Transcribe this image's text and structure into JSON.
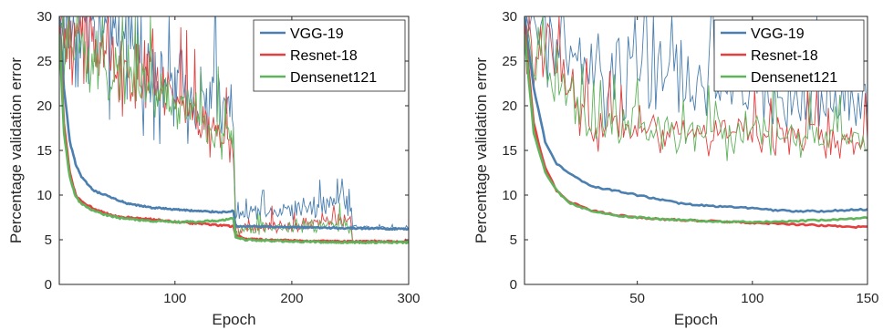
{
  "colors": {
    "VGG-19": "#4a7fb0",
    "Resnet-18": "#e3403f",
    "Densenet121": "#5fb35a",
    "axis": "#262626"
  },
  "chart_data": [
    {
      "type": "line",
      "xlabel": "Epoch",
      "ylabel": "Percentage validation error",
      "xlim": [
        1,
        300
      ],
      "ylim": [
        0,
        30
      ],
      "xticks": [
        100,
        200,
        300
      ],
      "yticks": [
        0,
        5,
        10,
        15,
        20,
        25,
        30
      ],
      "legend": "top-right",
      "series": [
        {
          "name": "VGG-19",
          "smooth": [
            [
              1,
              30
            ],
            [
              5,
              22
            ],
            [
              10,
              16
            ],
            [
              15,
              13.5
            ],
            [
              20,
              12
            ],
            [
              30,
              10.5
            ],
            [
              40,
              10
            ],
            [
              50,
              9.5
            ],
            [
              60,
              9
            ],
            [
              80,
              8.6
            ],
            [
              100,
              8.4
            ],
            [
              120,
              8.2
            ],
            [
              140,
              8.1
            ],
            [
              150,
              8.2
            ],
            [
              152,
              6.5
            ],
            [
              160,
              6.5
            ],
            [
              200,
              6.4
            ],
            [
              250,
              6.3
            ],
            [
              252,
              6.3
            ],
            [
              300,
              6.2
            ]
          ],
          "noise": [
            [
              1,
              30
            ],
            [
              150,
              19
            ],
            [
              152,
              7.5
            ],
            [
              250,
              9.5
            ],
            [
              252,
              6.5
            ],
            [
              300,
              6.3
            ]
          ],
          "amp": [
            [
              1,
              12
            ],
            [
              150,
              6
            ],
            [
              152,
              1.5
            ],
            [
              250,
              2.5
            ],
            [
              252,
              0.25
            ],
            [
              300,
              0.2
            ]
          ]
        },
        {
          "name": "Resnet-18",
          "smooth": [
            [
              1,
              29
            ],
            [
              5,
              18
            ],
            [
              10,
              12.5
            ],
            [
              15,
              10
            ],
            [
              20,
              9.3
            ],
            [
              30,
              8.5
            ],
            [
              40,
              8
            ],
            [
              50,
              7.6
            ],
            [
              60,
              7.5
            ],
            [
              80,
              7.3
            ],
            [
              100,
              7
            ],
            [
              120,
              6.8
            ],
            [
              140,
              6.6
            ],
            [
              150,
              6.5
            ],
            [
              152,
              5.5
            ],
            [
              160,
              5.1
            ],
            [
              200,
              4.9
            ],
            [
              250,
              4.8
            ],
            [
              252,
              4.8
            ],
            [
              300,
              4.8
            ]
          ],
          "noise": [
            [
              1,
              29
            ],
            [
              150,
              16
            ],
            [
              152,
              6.2
            ],
            [
              250,
              7.2
            ],
            [
              252,
              4.9
            ],
            [
              300,
              4.8
            ]
          ],
          "amp": [
            [
              1,
              8
            ],
            [
              150,
              3.5
            ],
            [
              152,
              1.1
            ],
            [
              250,
              1.3
            ],
            [
              252,
              0.15
            ],
            [
              300,
              0.12
            ]
          ]
        },
        {
          "name": "Densenet121",
          "smooth": [
            [
              1,
              28
            ],
            [
              5,
              17
            ],
            [
              10,
              12
            ],
            [
              15,
              9.8
            ],
            [
              20,
              9
            ],
            [
              30,
              8.3
            ],
            [
              40,
              7.8
            ],
            [
              50,
              7.5
            ],
            [
              60,
              7.3
            ],
            [
              80,
              7.1
            ],
            [
              100,
              7
            ],
            [
              120,
              7
            ],
            [
              140,
              7.2
            ],
            [
              150,
              7.4
            ],
            [
              152,
              5.3
            ],
            [
              160,
              5
            ],
            [
              200,
              4.8
            ],
            [
              250,
              4.7
            ],
            [
              252,
              4.7
            ],
            [
              300,
              4.7
            ]
          ],
          "noise": [
            [
              1,
              28
            ],
            [
              150,
              16
            ],
            [
              152,
              6
            ],
            [
              250,
              6.8
            ],
            [
              252,
              4.8
            ],
            [
              300,
              4.7
            ]
          ],
          "amp": [
            [
              1,
              8
            ],
            [
              150,
              3.5
            ],
            [
              152,
              1.1
            ],
            [
              250,
              1.2
            ],
            [
              252,
              0.15
            ],
            [
              300,
              0.12
            ]
          ]
        }
      ]
    },
    {
      "type": "line",
      "xlabel": "Epoch",
      "ylabel": "Percentage validation error",
      "xlim": [
        1,
        150
      ],
      "ylim": [
        0,
        30
      ],
      "xticks": [
        50,
        100,
        150
      ],
      "yticks": [
        0,
        5,
        10,
        15,
        20,
        25,
        30
      ],
      "legend": "top-right",
      "series": [
        {
          "name": "VGG-19",
          "smooth": [
            [
              1,
              30
            ],
            [
              5,
              22
            ],
            [
              10,
              16
            ],
            [
              15,
              13.5
            ],
            [
              20,
              12.5
            ],
            [
              30,
              11
            ],
            [
              40,
              10.5
            ],
            [
              50,
              10
            ],
            [
              60,
              9.5
            ],
            [
              70,
              9
            ],
            [
              80,
              8.8
            ],
            [
              90,
              8.7
            ],
            [
              100,
              8.5
            ],
            [
              110,
              8.3
            ],
            [
              120,
              8.2
            ],
            [
              130,
              8.2
            ],
            [
              140,
              8.3
            ],
            [
              150,
              8.4
            ]
          ],
          "noise": [
            [
              1,
              30
            ],
            [
              30,
              23
            ],
            [
              80,
              22
            ],
            [
              150,
              20
            ]
          ],
          "amp": [
            [
              1,
              12
            ],
            [
              30,
              10
            ],
            [
              80,
              7
            ],
            [
              150,
              5
            ]
          ]
        },
        {
          "name": "Resnet-18",
          "smooth": [
            [
              1,
              29
            ],
            [
              5,
              18
            ],
            [
              10,
              13
            ],
            [
              15,
              10.5
            ],
            [
              20,
              9.3
            ],
            [
              30,
              8.3
            ],
            [
              40,
              7.8
            ],
            [
              50,
              7.5
            ],
            [
              60,
              7.3
            ],
            [
              70,
              7.2
            ],
            [
              80,
              7.1
            ],
            [
              90,
              7
            ],
            [
              100,
              6.9
            ],
            [
              110,
              6.8
            ],
            [
              120,
              6.7
            ],
            [
              130,
              6.6
            ],
            [
              140,
              6.5
            ],
            [
              150,
              6.4
            ]
          ],
          "noise": [
            [
              1,
              29
            ],
            [
              30,
              18
            ],
            [
              80,
              17
            ],
            [
              150,
              16
            ]
          ],
          "amp": [
            [
              1,
              8
            ],
            [
              30,
              4
            ],
            [
              80,
              3.5
            ],
            [
              150,
              3
            ]
          ]
        },
        {
          "name": "Densenet121",
          "smooth": [
            [
              1,
              28
            ],
            [
              5,
              17
            ],
            [
              10,
              12.5
            ],
            [
              15,
              10.5
            ],
            [
              20,
              9.2
            ],
            [
              30,
              8.2
            ],
            [
              40,
              7.7
            ],
            [
              50,
              7.5
            ],
            [
              60,
              7.3
            ],
            [
              70,
              7.2
            ],
            [
              80,
              7.1
            ],
            [
              90,
              7
            ],
            [
              100,
              7
            ],
            [
              110,
              7
            ],
            [
              120,
              7.1
            ],
            [
              130,
              7.2
            ],
            [
              140,
              7.3
            ],
            [
              150,
              7.5
            ]
          ],
          "noise": [
            [
              1,
              28
            ],
            [
              30,
              18
            ],
            [
              80,
              17
            ],
            [
              150,
              16
            ]
          ],
          "amp": [
            [
              1,
              8
            ],
            [
              30,
              4
            ],
            [
              80,
              3.5
            ],
            [
              150,
              3
            ]
          ]
        }
      ]
    }
  ]
}
